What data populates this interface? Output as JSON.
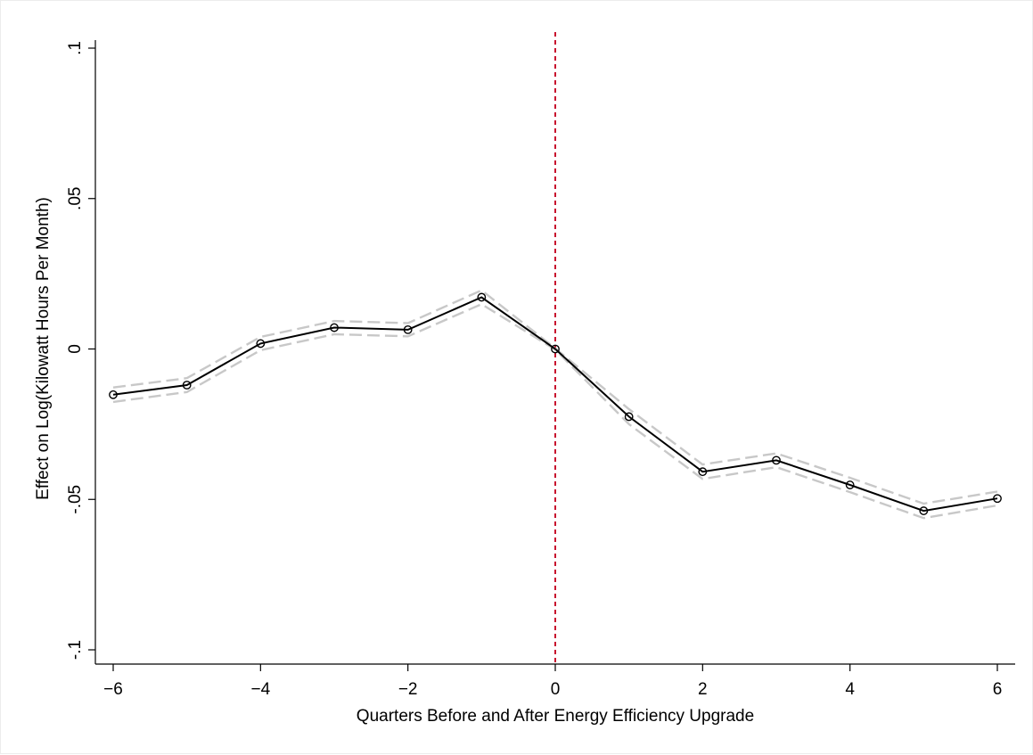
{
  "chart_data": {
    "type": "line",
    "title": "",
    "xlabel": "Quarters Before and After Energy Efficiency Upgrade",
    "ylabel": "Effect on Log(Kilowatt Hours Per Month)",
    "xlim": [
      -6,
      6
    ],
    "ylim": [
      -0.1,
      0.1
    ],
    "x_ticks": [
      -6,
      -4,
      -2,
      0,
      2,
      4,
      6
    ],
    "x_tick_labels": [
      "−6",
      "−4",
      "−2",
      "0",
      "2",
      "4",
      "6"
    ],
    "y_ticks": [
      -0.1,
      -0.05,
      0,
      0.05,
      0.1
    ],
    "y_tick_labels": [
      "-.1",
      "-.05",
      "0",
      ".05",
      ".1"
    ],
    "grid": false,
    "x": [
      -6,
      -5,
      -4,
      -3,
      -2,
      -1,
      0,
      1,
      2,
      3,
      4,
      5,
      6
    ],
    "series": [
      {
        "role": "estimate",
        "color": "#000000",
        "values": [
          -0.0152,
          -0.012,
          0.0018,
          0.0071,
          0.0064,
          0.0172,
          0.0,
          -0.0225,
          -0.0408,
          -0.037,
          -0.0452,
          -0.0538,
          -0.0497
        ]
      },
      {
        "role": "upper_ci",
        "color": "#c8c8c8",
        "values": [
          -0.0128,
          -0.0097,
          0.004,
          0.0093,
          0.0086,
          0.0195,
          0.0002,
          -0.02,
          -0.0384,
          -0.0347,
          -0.0428,
          -0.0514,
          -0.0474
        ]
      },
      {
        "role": "lower_ci",
        "color": "#c8c8c8",
        "values": [
          -0.0176,
          -0.0143,
          -0.0004,
          0.0049,
          0.0042,
          0.0149,
          -0.0002,
          -0.025,
          -0.0432,
          -0.0393,
          -0.0476,
          -0.0562,
          -0.052
        ]
      }
    ],
    "reference_line": {
      "axis": "x",
      "value": 0,
      "color": "#c8102e",
      "style": "dashed"
    }
  }
}
